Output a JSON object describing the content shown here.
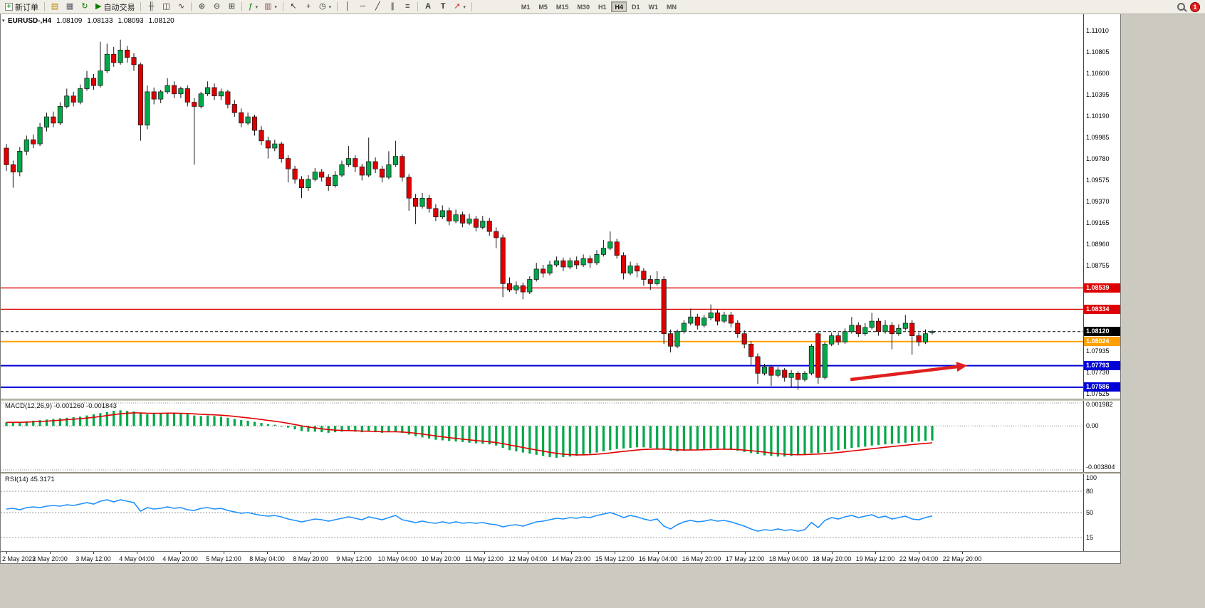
{
  "toolbar": {
    "new_order_label": "新订单",
    "autotrading_label": "自动交易",
    "timeframes": [
      "M1",
      "M5",
      "M15",
      "M30",
      "H1",
      "H4",
      "D1",
      "W1",
      "MN"
    ],
    "active_timeframe": "H4",
    "mail_badge": "1"
  },
  "chart_header": {
    "symbol_period": "EURUSD-,H4",
    "open": "1.08109",
    "high": "1.08133",
    "low": "1.08093",
    "close": "1.08120"
  },
  "price_axis": {
    "labels": [
      "1.11010",
      "1.10805",
      "1.10600",
      "1.10395",
      "1.10190",
      "1.09985",
      "1.09780",
      "1.09575",
      "1.09370",
      "1.09165",
      "1.08960",
      "1.08755",
      "1.07935",
      "1.07730",
      "1.07525"
    ],
    "badges": [
      {
        "value": "1.08539",
        "color": "#DE0000"
      },
      {
        "value": "1.08334",
        "color": "#DE0000"
      },
      {
        "value": "1.08120",
        "color": "#000000"
      },
      {
        "value": "1.08024",
        "color": "#FFA000"
      },
      {
        "value": "1.07793",
        "color": "#0000D8"
      },
      {
        "value": "1.07586",
        "color": "#0000D8"
      }
    ]
  },
  "time_axis": [
    "2 May 2023",
    "2 May 20:00",
    "3 May 12:00",
    "4 May 04:00",
    "4 May 20:00",
    "5 May 12:00",
    "8 May 04:00",
    "8 May 20:00",
    "9 May 12:00",
    "10 May 04:00",
    "10 May 20:00",
    "11 May 12:00",
    "12 May 04:00",
    "14 May 23:00",
    "15 May 12:00",
    "16 May 04:00",
    "16 May 20:00",
    "17 May 12:00",
    "18 May 04:00",
    "18 May 20:00",
    "19 May 12:00",
    "22 May 04:00",
    "22 May 20:00"
  ],
  "macd_panel": {
    "label": "MACD(12,26,9) -0.001260 -0.001843",
    "scale_top": "0.001982",
    "scale_zero": "0.00",
    "scale_bottom": "-0.003804"
  },
  "rsi_panel": {
    "label": "RSI(14) 45.3171",
    "scale": [
      "100",
      "80",
      "50",
      "15"
    ]
  },
  "colors": {
    "bull": "#00A84A",
    "bear": "#DE0000",
    "macd_hist": "#00A84A",
    "macd_signal": "#E00000",
    "rsi_line": "#1E90FF",
    "arrow": "#E02020"
  },
  "chart_data": {
    "type": "candlestick",
    "symbol": "EURUSD",
    "period": "H4",
    "price_range": [
      1.0749,
      1.1115
    ],
    "current_price": 1.0812,
    "levels": [
      {
        "price": 1.08539,
        "color": "#DE0000",
        "width": 1.4
      },
      {
        "price": 1.08334,
        "color": "#DE0000",
        "width": 1.4
      },
      {
        "price": 1.08024,
        "color": "#FFA000",
        "width": 2
      },
      {
        "price": 1.07793,
        "color": "#0000D8",
        "width": 2
      },
      {
        "price": 1.07586,
        "color": "#0000D8",
        "width": 2
      }
    ],
    "arrow": {
      "x1_frac": 0.785,
      "price1": 1.0766,
      "x2_frac": 0.893,
      "price2": 1.07795
    },
    "candles": [
      [
        1.0988,
        1.0992,
        1.0966,
        1.0972
      ],
      [
        1.0972,
        1.0976,
        1.095,
        1.0965
      ],
      [
        1.0965,
        1.0989,
        1.0961,
        1.0985
      ],
      [
        1.0985,
        1.1,
        1.0981,
        1.0996
      ],
      [
        1.0996,
        1.1001,
        1.0988,
        1.0992
      ],
      [
        1.0992,
        1.1012,
        1.099,
        1.1008
      ],
      [
        1.1008,
        1.1022,
        1.1004,
        1.1018
      ],
      [
        1.1018,
        1.1023,
        1.1008,
        1.1012
      ],
      [
        1.1012,
        1.1032,
        1.101,
        1.1028
      ],
      [
        1.1028,
        1.1045,
        1.1026,
        1.1038
      ],
      [
        1.1038,
        1.1042,
        1.1028,
        1.1032
      ],
      [
        1.1032,
        1.1049,
        1.103,
        1.1045
      ],
      [
        1.1045,
        1.1062,
        1.1043,
        1.1055
      ],
      [
        1.1055,
        1.1059,
        1.1044,
        1.1048
      ],
      [
        1.1048,
        1.109,
        1.1046,
        1.1062
      ],
      [
        1.1062,
        1.1088,
        1.106,
        1.1078
      ],
      [
        1.1078,
        1.1085,
        1.1066,
        1.107
      ],
      [
        1.107,
        1.1092,
        1.1068,
        1.1082
      ],
      [
        1.1082,
        1.1086,
        1.107,
        1.1075
      ],
      [
        1.1075,
        1.1079,
        1.1062,
        1.1068
      ],
      [
        1.1068,
        1.107,
        1.0995,
        1.101
      ],
      [
        1.101,
        1.1048,
        1.1006,
        1.1042
      ],
      [
        1.1042,
        1.1046,
        1.103,
        1.1035
      ],
      [
        1.1035,
        1.1044,
        1.1031,
        1.1042
      ],
      [
        1.1042,
        1.1055,
        1.104,
        1.1048
      ],
      [
        1.1048,
        1.1052,
        1.1036,
        1.104
      ],
      [
        1.104,
        1.1047,
        1.1036,
        1.1045
      ],
      [
        1.1045,
        1.1048,
        1.1028,
        1.1032
      ],
      [
        1.1032,
        1.1036,
        1.0972,
        1.1028
      ],
      [
        1.1028,
        1.1042,
        1.1026,
        1.104
      ],
      [
        1.104,
        1.1052,
        1.1038,
        1.1046
      ],
      [
        1.1046,
        1.105,
        1.1034,
        1.1038
      ],
      [
        1.1038,
        1.1045,
        1.1034,
        1.1042
      ],
      [
        1.1042,
        1.1044,
        1.1026,
        1.103
      ],
      [
        1.103,
        1.1034,
        1.1018,
        1.1022
      ],
      [
        1.1022,
        1.1026,
        1.1008,
        1.1012
      ],
      [
        1.1012,
        1.1022,
        1.101,
        1.1018
      ],
      [
        1.1018,
        1.102,
        1.1,
        1.1005
      ],
      [
        1.1005,
        1.1009,
        1.0991,
        1.0995
      ],
      [
        1.0995,
        1.0999,
        1.0978,
        1.0988
      ],
      [
        1.0988,
        1.0996,
        1.0985,
        1.0992
      ],
      [
        1.0992,
        1.0994,
        1.0974,
        1.0978
      ],
      [
        1.0978,
        1.0981,
        1.0955,
        1.0968
      ],
      [
        1.0968,
        1.0971,
        1.0954,
        1.0958
      ],
      [
        1.0958,
        1.0961,
        1.094,
        1.095
      ],
      [
        1.095,
        1.0962,
        1.0947,
        1.0958
      ],
      [
        1.0958,
        1.0969,
        1.0956,
        1.0965
      ],
      [
        1.0965,
        1.0968,
        1.0956,
        1.096
      ],
      [
        1.096,
        1.0963,
        1.0947,
        1.0952
      ],
      [
        1.0952,
        1.0966,
        1.095,
        1.0962
      ],
      [
        1.0962,
        1.0976,
        1.096,
        1.0972
      ],
      [
        1.0972,
        1.099,
        1.097,
        1.0978
      ],
      [
        1.0978,
        1.0981,
        1.0965,
        1.097
      ],
      [
        1.097,
        1.0973,
        1.0957,
        1.0962
      ],
      [
        1.0962,
        1.0998,
        1.096,
        1.0975
      ],
      [
        1.0975,
        1.0979,
        1.0964,
        1.0968
      ],
      [
        1.0968,
        1.0971,
        1.0955,
        1.096
      ],
      [
        1.096,
        1.0985,
        1.0958,
        1.0972
      ],
      [
        1.0972,
        1.0995,
        1.097,
        1.098
      ],
      [
        1.098,
        1.0982,
        1.0956,
        1.096
      ],
      [
        1.096,
        1.0963,
        1.0928,
        1.094
      ],
      [
        1.094,
        1.0944,
        1.0915,
        1.0932
      ],
      [
        1.0932,
        1.0945,
        1.093,
        1.094
      ],
      [
        1.094,
        1.0943,
        1.0926,
        1.093
      ],
      [
        1.093,
        1.0934,
        1.0918,
        1.0922
      ],
      [
        1.0922,
        1.0933,
        1.092,
        1.0928
      ],
      [
        1.0928,
        1.0931,
        1.0914,
        1.0918
      ],
      [
        1.0918,
        1.0929,
        1.0916,
        1.0924
      ],
      [
        1.0924,
        1.0927,
        1.0912,
        1.0916
      ],
      [
        1.0916,
        1.0925,
        1.0914,
        1.092
      ],
      [
        1.092,
        1.0923,
        1.0908,
        1.0912
      ],
      [
        1.0912,
        1.0923,
        1.091,
        1.0918
      ],
      [
        1.0918,
        1.0921,
        1.0904,
        1.0908
      ],
      [
        1.0908,
        1.0912,
        1.0892,
        1.0902
      ],
      [
        1.0902,
        1.0905,
        1.0845,
        1.0858
      ],
      [
        1.0858,
        1.0864,
        1.085,
        1.0852
      ],
      [
        1.0852,
        1.086,
        1.0848,
        1.0856
      ],
      [
        1.0856,
        1.0859,
        1.0843,
        1.085
      ],
      [
        1.085,
        1.0865,
        1.0848,
        1.0862
      ],
      [
        1.0862,
        1.0878,
        1.086,
        1.0872
      ],
      [
        1.0872,
        1.0876,
        1.0864,
        1.0868
      ],
      [
        1.0868,
        1.088,
        1.0866,
        1.0876
      ],
      [
        1.0876,
        1.0884,
        1.0874,
        1.088
      ],
      [
        1.088,
        1.0883,
        1.087,
        1.0874
      ],
      [
        1.0874,
        1.0883,
        1.0872,
        1.088
      ],
      [
        1.088,
        1.0884,
        1.0872,
        1.0876
      ],
      [
        1.0876,
        1.0886,
        1.0874,
        1.0882
      ],
      [
        1.0882,
        1.0885,
        1.0873,
        1.0878
      ],
      [
        1.0878,
        1.089,
        1.0876,
        1.0886
      ],
      [
        1.0886,
        1.09,
        1.0884,
        1.0892
      ],
      [
        1.0892,
        1.0908,
        1.089,
        1.0898
      ],
      [
        1.0898,
        1.0901,
        1.0882,
        1.0885
      ],
      [
        1.0885,
        1.0888,
        1.0862,
        1.0868
      ],
      [
        1.0868,
        1.0879,
        1.0866,
        1.0875
      ],
      [
        1.0875,
        1.0878,
        1.0864,
        1.087
      ],
      [
        1.087,
        1.0873,
        1.0856,
        1.0862
      ],
      [
        1.0862,
        1.0866,
        1.0852,
        1.0858
      ],
      [
        1.0858,
        1.087,
        1.0856,
        1.0862
      ],
      [
        1.0862,
        1.0865,
        1.08,
        1.081
      ],
      [
        1.081,
        1.0814,
        1.0792,
        1.0798
      ],
      [
        1.0798,
        1.0814,
        1.0796,
        1.0812
      ],
      [
        1.0812,
        1.0823,
        1.081,
        1.082
      ],
      [
        1.082,
        1.0834,
        1.0818,
        1.0826
      ],
      [
        1.0826,
        1.0829,
        1.0814,
        1.0818
      ],
      [
        1.0818,
        1.0828,
        1.0816,
        1.0825
      ],
      [
        1.0825,
        1.0838,
        1.0823,
        1.083
      ],
      [
        1.083,
        1.0833,
        1.0818,
        1.0822
      ],
      [
        1.0822,
        1.0831,
        1.082,
        1.0828
      ],
      [
        1.0828,
        1.0831,
        1.0816,
        1.082
      ],
      [
        1.082,
        1.0823,
        1.0806,
        1.081
      ],
      [
        1.081,
        1.0813,
        1.0796,
        1.08
      ],
      [
        1.08,
        1.0803,
        1.078,
        1.0788
      ],
      [
        1.0788,
        1.0791,
        1.0762,
        1.0772
      ],
      [
        1.0772,
        1.0781,
        1.077,
        1.0778
      ],
      [
        1.0778,
        1.078,
        1.076,
        1.077
      ],
      [
        1.077,
        1.0778,
        1.0768,
        1.0775
      ],
      [
        1.0775,
        1.0777,
        1.0764,
        1.0768
      ],
      [
        1.0768,
        1.0775,
        1.0758,
        1.0772
      ],
      [
        1.0772,
        1.0774,
        1.0756,
        1.0766
      ],
      [
        1.0766,
        1.0774,
        1.0764,
        1.0772
      ],
      [
        1.0772,
        1.08,
        1.077,
        1.0798
      ],
      [
        1.081,
        1.0812,
        1.0762,
        1.0768
      ],
      [
        1.0768,
        1.0802,
        1.0766,
        1.08
      ],
      [
        1.08,
        1.0811,
        1.0798,
        1.0808
      ],
      [
        1.0808,
        1.0811,
        1.0799,
        1.0802
      ],
      [
        1.0802,
        1.0815,
        1.08,
        1.0812
      ],
      [
        1.0812,
        1.0826,
        1.081,
        1.0818
      ],
      [
        1.0818,
        1.0821,
        1.0807,
        1.081
      ],
      [
        1.081,
        1.082,
        1.0808,
        1.0816
      ],
      [
        1.0816,
        1.083,
        1.0814,
        1.0822
      ],
      [
        1.0822,
        1.0825,
        1.0808,
        1.0812
      ],
      [
        1.0812,
        1.0823,
        1.081,
        1.0818
      ],
      [
        1.0818,
        1.0821,
        1.0795,
        1.081
      ],
      [
        1.081,
        1.0819,
        1.0808,
        1.0815
      ],
      [
        1.0815,
        1.0828,
        1.0813,
        1.082
      ],
      [
        1.082,
        1.0823,
        1.079,
        1.0808
      ],
      [
        1.0808,
        1.0811,
        1.0798,
        1.0802
      ],
      [
        1.0802,
        1.0814,
        1.08,
        1.081
      ],
      [
        1.08109,
        1.08133,
        1.08093,
        1.0812
      ]
    ],
    "macd_range": [
      -0.003804,
      0.001982
    ],
    "macd_values": [
      -0.00126,
      -0.001843
    ],
    "macd_hist": [
      0.0003,
      0.00035,
      0.0003,
      0.0004,
      0.00045,
      0.0005,
      0.00055,
      0.0006,
      0.00065,
      0.0007,
      0.00075,
      0.0008,
      0.0009,
      0.001,
      0.0011,
      0.0012,
      0.0013,
      0.00135,
      0.0013,
      0.00125,
      0.0011,
      0.001,
      0.00105,
      0.0011,
      0.00115,
      0.0011,
      0.00105,
      0.001,
      0.0009,
      0.00085,
      0.0009,
      0.00085,
      0.0008,
      0.0007,
      0.0006,
      0.0005,
      0.00045,
      0.00035,
      0.00025,
      0.00015,
      0.0001,
      0.0,
      -0.00015,
      -0.0003,
      -0.00045,
      -0.0005,
      -0.0005,
      -0.00055,
      -0.0006,
      -0.00055,
      -0.0005,
      -0.00045,
      -0.0005,
      -0.00055,
      -0.0005,
      -0.00055,
      -0.0006,
      -0.00055,
      -0.0005,
      -0.0006,
      -0.00075,
      -0.0009,
      -0.001,
      -0.0011,
      -0.0012,
      -0.00125,
      -0.0013,
      -0.00135,
      -0.0014,
      -0.00145,
      -0.0015,
      -0.00155,
      -0.0016,
      -0.0017,
      -0.0019,
      -0.0021,
      -0.0022,
      -0.0023,
      -0.0024,
      -0.0025,
      -0.0026,
      -0.0027,
      -0.00275,
      -0.0027,
      -0.00265,
      -0.0026,
      -0.0025,
      -0.0024,
      -0.0023,
      -0.0022,
      -0.0021,
      -0.002,
      -0.00195,
      -0.0019,
      -0.00185,
      -0.00185,
      -0.0019,
      -0.00195,
      -0.00205,
      -0.00215,
      -0.0022,
      -0.00215,
      -0.0021,
      -0.00205,
      -0.002,
      -0.00195,
      -0.00195,
      -0.002,
      -0.00205,
      -0.00215,
      -0.00225,
      -0.00235,
      -0.00245,
      -0.00255,
      -0.0026,
      -0.00265,
      -0.00265,
      -0.0026,
      -0.00255,
      -0.00245,
      -0.00235,
      -0.00235,
      -0.00225,
      -0.00215,
      -0.0021,
      -0.002,
      -0.0019,
      -0.00185,
      -0.0018,
      -0.0017,
      -0.00165,
      -0.0016,
      -0.00155,
      -0.0015,
      -0.00145,
      -0.0014,
      -0.00135,
      -0.0013,
      -0.00126
    ],
    "rsi_levels": [
      80,
      50,
      15
    ],
    "rsi_last": 45.3171,
    "rsi": [
      55,
      56,
      54,
      57,
      58,
      57,
      59,
      60,
      59,
      61,
      60,
      62,
      64,
      62,
      66,
      68,
      65,
      68,
      66,
      64,
      52,
      57,
      55,
      56,
      58,
      56,
      57,
      54,
      53,
      56,
      57,
      55,
      56,
      53,
      51,
      49,
      50,
      48,
      46,
      45,
      46,
      44,
      41,
      39,
      37,
      39,
      41,
      40,
      38,
      40,
      42,
      44,
      42,
      40,
      44,
      42,
      40,
      43,
      46,
      40,
      38,
      36,
      38,
      36,
      35,
      37,
      35,
      37,
      35,
      36,
      35,
      36,
      34,
      33,
      30,
      32,
      33,
      31,
      34,
      37,
      38,
      40,
      42,
      41,
      43,
      42,
      44,
      43,
      46,
      48,
      50,
      47,
      43,
      46,
      44,
      41,
      39,
      41,
      31,
      27,
      33,
      37,
      39,
      37,
      38,
      40,
      38,
      39,
      37,
      34,
      31,
      27,
      24,
      26,
      25,
      27,
      25,
      26,
      24,
      26,
      36,
      29,
      39,
      43,
      41,
      44,
      46,
      43,
      45,
      47,
      43,
      45,
      41,
      43,
      45,
      41,
      40,
      43,
      45.3
    ]
  }
}
